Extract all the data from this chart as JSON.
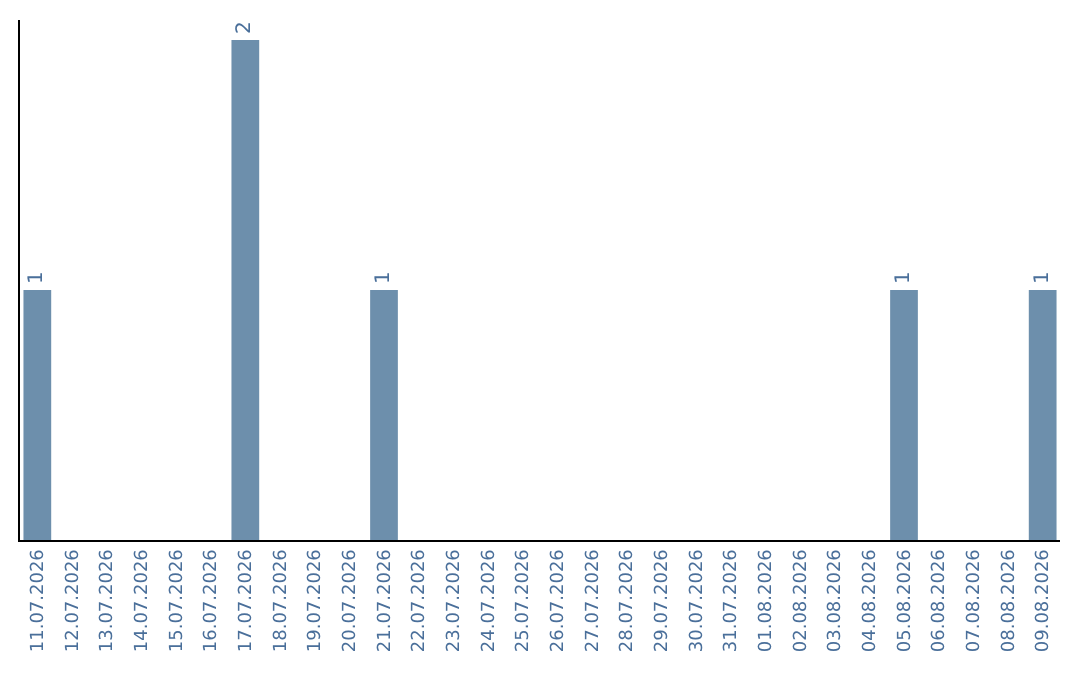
{
  "chart_data": {
    "type": "bar",
    "categories": [
      "11.07.2026",
      "12.07.2026",
      "13.07.2026",
      "14.07.2026",
      "15.07.2026",
      "16.07.2026",
      "17.07.2026",
      "18.07.2026",
      "19.07.2026",
      "20.07.2026",
      "21.07.2026",
      "22.07.2026",
      "23.07.2026",
      "24.07.2026",
      "25.07.2026",
      "26.07.2026",
      "27.07.2026",
      "28.07.2026",
      "29.07.2026",
      "30.07.2026",
      "31.07.2026",
      "01.08.2026",
      "02.08.2026",
      "03.08.2026",
      "04.08.2026",
      "05.08.2026",
      "06.08.2026",
      "07.08.2026",
      "08.08.2026",
      "09.08.2026"
    ],
    "values": [
      1,
      0,
      0,
      0,
      0,
      0,
      2,
      0,
      0,
      0,
      1,
      0,
      0,
      0,
      0,
      0,
      0,
      0,
      0,
      0,
      0,
      0,
      0,
      0,
      0,
      1,
      0,
      0,
      0,
      1
    ],
    "value_labels": [
      "1",
      null,
      null,
      null,
      null,
      null,
      "2",
      null,
      null,
      null,
      "1",
      null,
      null,
      null,
      null,
      null,
      null,
      null,
      null,
      null,
      null,
      null,
      null,
      null,
      null,
      "1",
      null,
      null,
      null,
      "1"
    ],
    "color": "#6d8fac",
    "legend": false
  }
}
